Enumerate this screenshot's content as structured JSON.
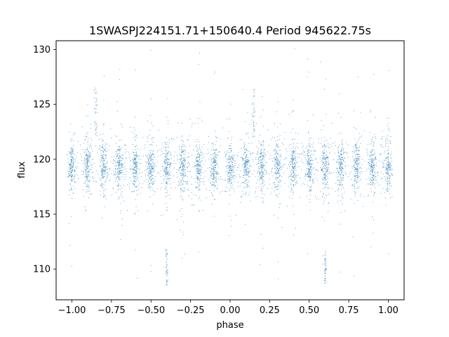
{
  "chart_data": {
    "type": "scatter",
    "title": "1SWASPJ224151.71+150640.4 Period 945622.75s",
    "xlabel": "phase",
    "ylabel": "flux",
    "xlim": [
      -1.1,
      1.1
    ],
    "ylim": [
      107.2,
      130.8
    ],
    "xticks": [
      -1.0,
      -0.75,
      -0.5,
      -0.25,
      0.0,
      0.25,
      0.5,
      0.75,
      1.0
    ],
    "xtick_labels": [
      "−1.00",
      "−0.75",
      "−0.50",
      "−0.25",
      "0.00",
      "0.25",
      "0.50",
      "0.75",
      "1.00"
    ],
    "yticks": [
      110,
      115,
      120,
      125,
      130
    ],
    "ytick_labels": [
      "110",
      "115",
      "120",
      "125",
      "130"
    ],
    "grid": false,
    "marker_color": "#1f77b4",
    "series": [
      {
        "points_description_free": true,
        "x_range": [
          -1.0,
          1.0
        ],
        "y_center": 119.3,
        "y_core_spread": [
          117.5,
          121.5
        ],
        "y_outlier_range": [
          108.3,
          130.2
        ],
        "dip_phases": [
          -0.4,
          0.6
        ],
        "dip_flux_range": [
          108.5,
          111.8
        ],
        "spike_phases": [
          -0.85,
          0.15
        ],
        "spike_flux_range": [
          122.0,
          126.5
        ],
        "cluster_count_per_unit_phase": 10
      }
    ]
  }
}
